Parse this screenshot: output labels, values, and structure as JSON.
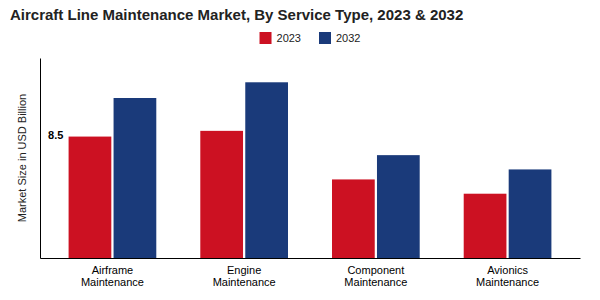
{
  "chart_data": {
    "type": "bar",
    "title": "Aircraft Line Maintenance Market, By Service Type, 2023 & 2032",
    "ylabel": "Market Size in USD Billion",
    "categories": [
      "Airframe\nMaintenance",
      "Engine\nMaintenance",
      "Component\nMaintenance",
      "Avionics\nMaintenance"
    ],
    "series": [
      {
        "name": "2023",
        "color": "#cc1122",
        "values": [
          8.5,
          8.9,
          5.5,
          4.5
        ]
      },
      {
        "name": "2032",
        "color": "#1a3a7a",
        "values": [
          11.2,
          12.3,
          7.2,
          6.2
        ]
      }
    ],
    "annotations": [
      {
        "text": "8.5",
        "x": "Airframe\nMaintenance",
        "y": 8.5
      }
    ],
    "ylim": [
      0,
      14
    ],
    "grid": false,
    "legend": "top",
    "tick_labels": "x"
  }
}
